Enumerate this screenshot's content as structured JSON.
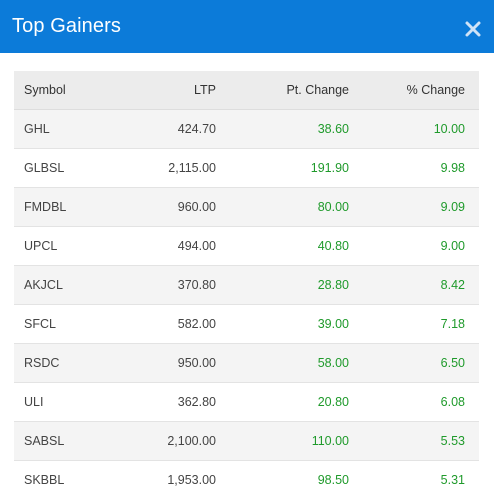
{
  "modal": {
    "title": "Top Gainers",
    "close_icon": "close-icon"
  },
  "table": {
    "headers": {
      "symbol": "Symbol",
      "ltp": "LTP",
      "pt_change": "Pt. Change",
      "pct_change": "% Change"
    },
    "rows": [
      {
        "symbol": "GHL",
        "ltp": "424.70",
        "pt_change": "38.60",
        "pct_change": "10.00"
      },
      {
        "symbol": "GLBSL",
        "ltp": "2,115.00",
        "pt_change": "191.90",
        "pct_change": "9.98"
      },
      {
        "symbol": "FMDBL",
        "ltp": "960.00",
        "pt_change": "80.00",
        "pct_change": "9.09"
      },
      {
        "symbol": "UPCL",
        "ltp": "494.00",
        "pt_change": "40.80",
        "pct_change": "9.00"
      },
      {
        "symbol": "AKJCL",
        "ltp": "370.80",
        "pt_change": "28.80",
        "pct_change": "8.42"
      },
      {
        "symbol": "SFCL",
        "ltp": "582.00",
        "pt_change": "39.00",
        "pct_change": "7.18"
      },
      {
        "symbol": "RSDC",
        "ltp": "950.00",
        "pt_change": "58.00",
        "pct_change": "6.50"
      },
      {
        "symbol": "ULI",
        "ltp": "362.80",
        "pt_change": "20.80",
        "pct_change": "6.08"
      },
      {
        "symbol": "SABSL",
        "ltp": "2,100.00",
        "pt_change": "110.00",
        "pct_change": "5.53"
      },
      {
        "symbol": "SKBBL",
        "ltp": "1,953.00",
        "pt_change": "98.50",
        "pct_change": "5.31"
      }
    ]
  },
  "colors": {
    "header_bg": "#0c7bd9",
    "gain": "#1f9a2b"
  }
}
